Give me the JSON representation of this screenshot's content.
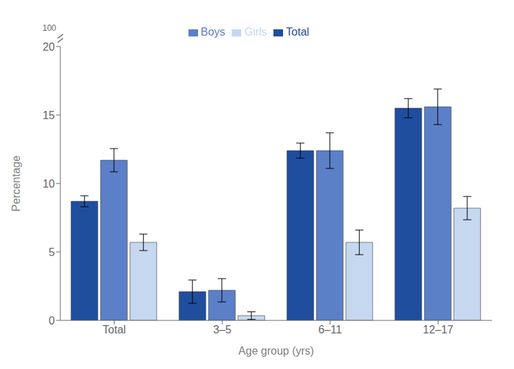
{
  "chart_data": {
    "type": "bar",
    "categories": [
      "Total",
      "3–5",
      "6–11",
      "12–17"
    ],
    "series": [
      {
        "name": "Total",
        "color": "#1F4E9F",
        "values": [
          8.7,
          2.1,
          12.4,
          15.5
        ],
        "errors": [
          0.4,
          0.85,
          0.55,
          0.7
        ]
      },
      {
        "name": "Boys",
        "color": "#5B80C8",
        "values": [
          11.7,
          2.2,
          12.4,
          15.6
        ],
        "errors": [
          0.85,
          0.85,
          1.3,
          1.3
        ]
      },
      {
        "name": "Girls",
        "color": "#C5D8F0",
        "values": [
          5.7,
          0.35,
          5.7,
          8.2
        ],
        "errors": [
          0.6,
          0.28,
          0.9,
          0.85
        ]
      }
    ],
    "xlabel": "Age group (yrs)",
    "ylabel": "Percentage",
    "ylim": [
      0,
      20
    ],
    "yticks": [
      0,
      5,
      10,
      15,
      20
    ],
    "legend": "top",
    "annotations": [
      "100"
    ]
  }
}
